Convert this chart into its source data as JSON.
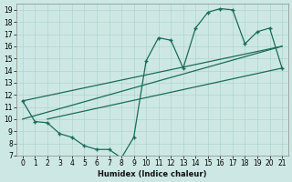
{
  "title": "",
  "xlabel": "Humidex (Indice chaleur)",
  "xlim": [
    -0.5,
    21.5
  ],
  "ylim": [
    7,
    19.5
  ],
  "xticks": [
    0,
    1,
    2,
    3,
    4,
    5,
    6,
    7,
    8,
    9,
    10,
    11,
    12,
    13,
    14,
    15,
    16,
    17,
    18,
    19,
    20,
    21
  ],
  "yticks": [
    7,
    8,
    9,
    10,
    11,
    12,
    13,
    14,
    15,
    16,
    17,
    18,
    19
  ],
  "bg_color": "#cde8e4",
  "grid_color": "#b0d4cc",
  "line_color": "#1a6b5a",
  "series1_x": [
    0,
    1,
    2,
    3,
    4,
    5,
    6,
    7,
    8,
    9,
    10,
    11,
    12,
    13,
    14,
    15,
    16,
    17,
    18,
    19,
    20,
    21
  ],
  "series1_y": [
    11.5,
    9.8,
    9.7,
    8.8,
    8.5,
    7.8,
    7.5,
    7.5,
    6.8,
    8.5,
    14.8,
    16.7,
    16.5,
    14.2,
    17.5,
    18.8,
    19.1,
    19.0,
    16.2,
    17.2,
    17.5,
    14.2
  ],
  "line1_x": [
    0,
    21
  ],
  "line1_y": [
    11.5,
    16.0
  ],
  "line2_x": [
    0,
    21
  ],
  "line2_y": [
    10.0,
    16.0
  ],
  "line3_x": [
    2,
    21
  ],
  "line3_y": [
    10.0,
    14.2
  ]
}
